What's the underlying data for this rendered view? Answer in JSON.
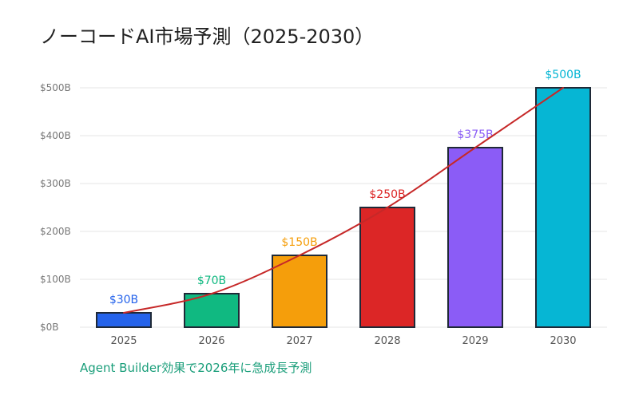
{
  "chart_data": {
    "type": "bar",
    "title": "ノーコードAI市場予測（2025-2030）",
    "categories": [
      "2025",
      "2026",
      "2027",
      "2028",
      "2029",
      "2030"
    ],
    "values": [
      30,
      70,
      150,
      250,
      375,
      500
    ],
    "data_labels": [
      "$30B",
      "$70B",
      "$150B",
      "$250B",
      "$375B",
      "$500B"
    ],
    "bar_colors": [
      "#2563eb",
      "#10b981",
      "#f59e0b",
      "#dc2626",
      "#8b5cf6",
      "#06b6d4"
    ],
    "y_ticks": [
      0,
      100,
      200,
      300,
      400,
      500
    ],
    "y_tick_labels": [
      "$0B",
      "$100B",
      "$200B",
      "$300B",
      "$400B",
      "$500B"
    ],
    "ylim": [
      0,
      500
    ],
    "xlabel": "",
    "ylabel": "",
    "grid": true,
    "trend_line": {
      "color": "#c62828",
      "values": [
        30,
        70,
        150,
        250,
        375,
        500
      ]
    },
    "annotation": {
      "text": "Agent Builder効果で2026年に急成長予測",
      "color": "#1a9e7a"
    }
  }
}
